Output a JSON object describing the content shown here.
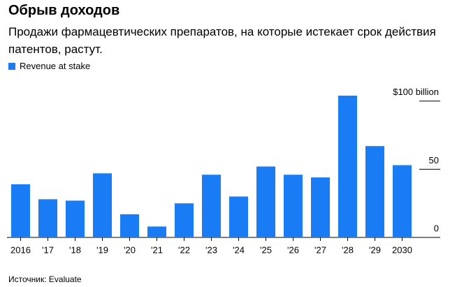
{
  "chart_data": {
    "type": "bar",
    "title": "Обрыв доходов",
    "subtitle": "Продажи фармацевтических препаратов, на которые истекает срок действия патентов, растут.",
    "categories": [
      "2016",
      "'17",
      "'18",
      "'19",
      "'20",
      "'21",
      "'22",
      "'23",
      "'24",
      "'25",
      "'26",
      "'27",
      "'28",
      "'29",
      "2030"
    ],
    "series": [
      {
        "name": "Revenue at stake",
        "color": "#1a7cf5",
        "values": [
          39,
          28,
          27,
          47,
          17,
          8,
          25,
          46,
          30,
          52,
          46,
          44,
          104,
          67,
          53
        ]
      }
    ],
    "ylim": [
      0,
      105
    ],
    "yticks": [
      0,
      50,
      {
        "value": 100,
        "label": "$100 billion"
      }
    ],
    "source": "Источник: Evaluate"
  }
}
